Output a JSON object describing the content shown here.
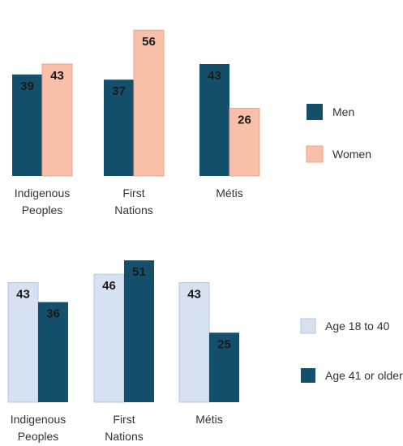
{
  "colors": {
    "men": "#14506c",
    "women": "#f8c0a8",
    "women_stroke": "#e8a58a",
    "age_young": "#d6e1f1",
    "age_young_stroke": "#b7c7dd",
    "age_old": "#14506c"
  },
  "chart_data": [
    {
      "type": "bar",
      "categories": [
        [
          "Indigenous",
          "Peoples"
        ],
        [
          "First",
          "Nations"
        ],
        [
          "Métis"
        ]
      ],
      "series": [
        {
          "name": "Men",
          "values": [
            39,
            37,
            43
          ]
        },
        {
          "name": "Women",
          "values": [
            43,
            56,
            26
          ]
        }
      ],
      "legend_position": "right",
      "grid": false
    },
    {
      "type": "bar",
      "categories": [
        [
          "Indigenous",
          "Peoples"
        ],
        [
          "First",
          "Nations"
        ],
        [
          "Métis"
        ]
      ],
      "series": [
        {
          "name": "Age 18 to 40",
          "values": [
            43,
            46,
            43
          ]
        },
        {
          "name": "Age 41 or older",
          "values": [
            36,
            51,
            25
          ]
        }
      ],
      "legend_position": "right",
      "grid": false
    }
  ]
}
